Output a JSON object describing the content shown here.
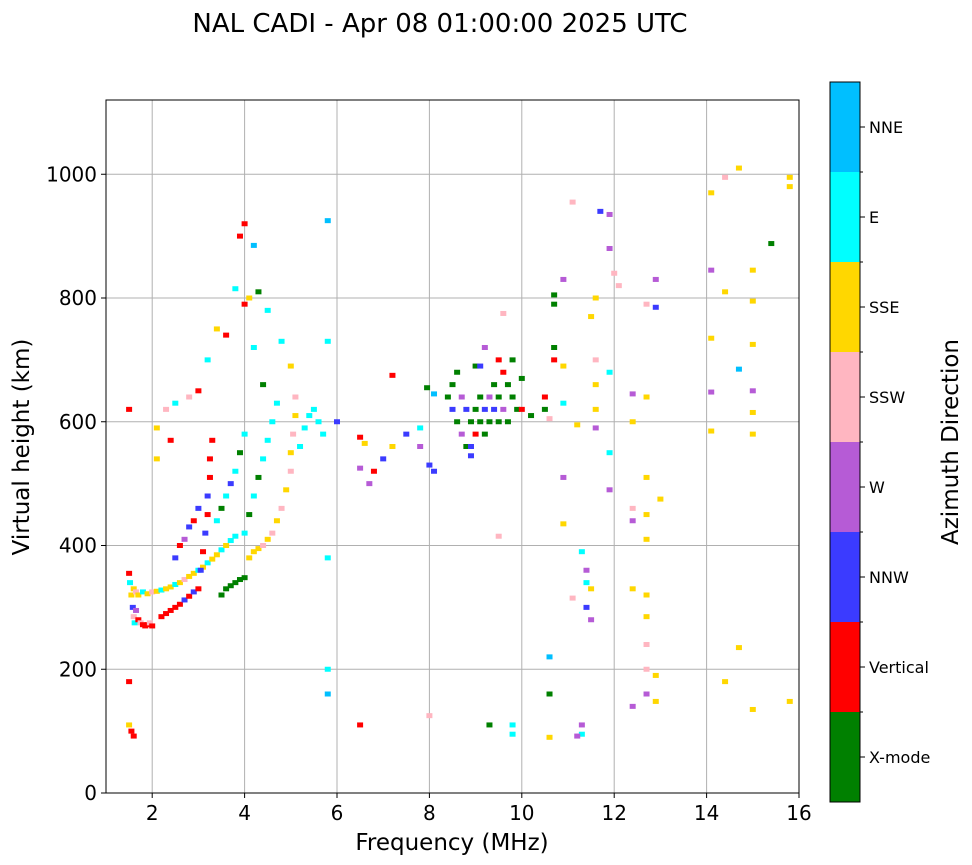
{
  "chart_data": {
    "type": "scatter",
    "title": "NAL CADI - Apr 08 01:00:00 2025 UTC",
    "xlabel": "Frequency (MHz)",
    "ylabel": "Virtual height (km)",
    "xlim": [
      1,
      16
    ],
    "ylim": [
      0,
      1120
    ],
    "xticks": [
      2,
      4,
      6,
      8,
      10,
      12,
      14,
      16
    ],
    "yticks": [
      0,
      200,
      400,
      600,
      800,
      1000
    ],
    "grid": true,
    "colorbar": {
      "label": "Azimuth Direction",
      "categories": [
        {
          "name": "X-mode",
          "color": "#008000"
        },
        {
          "name": "Vertical",
          "color": "#ff0000"
        },
        {
          "name": "NNW",
          "color": "#3b3bff"
        },
        {
          "name": "W",
          "color": "#b65bd6"
        },
        {
          "name": "SSW",
          "color": "#ffb6c1"
        },
        {
          "name": "SSE",
          "color": "#ffd700"
        },
        {
          "name": "E",
          "color": "#00ffff"
        },
        {
          "name": "NNE",
          "color": "#00bfff"
        }
      ]
    },
    "points": [
      [
        1.5,
        355,
        "Vertical"
      ],
      [
        1.52,
        340,
        "E"
      ],
      [
        1.55,
        320,
        "SSE"
      ],
      [
        1.58,
        300,
        "NNW"
      ],
      [
        1.6,
        285,
        "SSW"
      ],
      [
        1.62,
        275,
        "E"
      ],
      [
        1.65,
        295,
        "W"
      ],
      [
        1.7,
        280,
        "Vertical"
      ],
      [
        1.75,
        275,
        "SSW"
      ],
      [
        1.8,
        272,
        "Vertical"
      ],
      [
        1.85,
        270,
        "Vertical"
      ],
      [
        1.9,
        272,
        "Vertical"
      ],
      [
        1.95,
        275,
        "SSW"
      ],
      [
        2.0,
        270,
        "Vertical"
      ],
      [
        1.6,
        330,
        "SSE"
      ],
      [
        1.65,
        325,
        "SSW"
      ],
      [
        1.7,
        320,
        "SSE"
      ],
      [
        1.8,
        325,
        "E"
      ],
      [
        1.9,
        322,
        "SSE"
      ],
      [
        2.0,
        325,
        "SSW"
      ],
      [
        2.1,
        326,
        "SSE"
      ],
      [
        2.2,
        328,
        "E"
      ],
      [
        2.3,
        330,
        "SSE"
      ],
      [
        2.4,
        333,
        "SSE"
      ],
      [
        2.5,
        337,
        "E"
      ],
      [
        2.6,
        340,
        "SSE"
      ],
      [
        2.7,
        345,
        "SSW"
      ],
      [
        2.8,
        350,
        "SSE"
      ],
      [
        2.9,
        355,
        "SSE"
      ],
      [
        3.0,
        360,
        "E"
      ],
      [
        3.1,
        365,
        "SSE"
      ],
      [
        3.2,
        372,
        "E"
      ],
      [
        3.3,
        378,
        "SSE"
      ],
      [
        3.4,
        385,
        "SSE"
      ],
      [
        3.5,
        393,
        "E"
      ],
      [
        3.6,
        400,
        "SSE"
      ],
      [
        3.7,
        408,
        "E"
      ],
      [
        3.8,
        415,
        "E"
      ],
      [
        2.2,
        285,
        "Vertical"
      ],
      [
        2.3,
        290,
        "Vertical"
      ],
      [
        2.4,
        295,
        "Vertical"
      ],
      [
        2.5,
        300,
        "Vertical"
      ],
      [
        2.6,
        305,
        "Vertical"
      ],
      [
        2.7,
        312,
        "NNW"
      ],
      [
        2.8,
        318,
        "Vertical"
      ],
      [
        2.9,
        325,
        "NNW"
      ],
      [
        3.0,
        330,
        "Vertical"
      ],
      [
        3.05,
        360,
        "NNW"
      ],
      [
        3.1,
        390,
        "Vertical"
      ],
      [
        3.15,
        420,
        "NNW"
      ],
      [
        3.2,
        450,
        "Vertical"
      ],
      [
        3.2,
        480,
        "NNW"
      ],
      [
        3.25,
        510,
        "Vertical"
      ],
      [
        3.25,
        540,
        "Vertical"
      ],
      [
        3.3,
        570,
        "Vertical"
      ],
      [
        2.5,
        380,
        "NNW"
      ],
      [
        2.6,
        400,
        "Vertical"
      ],
      [
        2.7,
        410,
        "W"
      ],
      [
        2.8,
        430,
        "NNW"
      ],
      [
        2.9,
        440,
        "Vertical"
      ],
      [
        3.0,
        460,
        "NNW"
      ],
      [
        3.5,
        320,
        "X-mode"
      ],
      [
        3.6,
        330,
        "X-mode"
      ],
      [
        3.7,
        335,
        "X-mode"
      ],
      [
        3.8,
        340,
        "X-mode"
      ],
      [
        3.9,
        345,
        "X-mode"
      ],
      [
        4.0,
        348,
        "X-mode"
      ],
      [
        4.1,
        380,
        "SSE"
      ],
      [
        4.2,
        390,
        "SSE"
      ],
      [
        4.3,
        395,
        "SSE"
      ],
      [
        4.4,
        400,
        "SSW"
      ],
      [
        4.5,
        410,
        "SSE"
      ],
      [
        4.6,
        420,
        "SSW"
      ],
      [
        4.7,
        440,
        "SSE"
      ],
      [
        4.8,
        460,
        "SSW"
      ],
      [
        4.9,
        490,
        "SSE"
      ],
      [
        5.0,
        520,
        "SSW"
      ],
      [
        5.0,
        550,
        "SSE"
      ],
      [
        5.05,
        580,
        "SSW"
      ],
      [
        5.1,
        610,
        "SSE"
      ],
      [
        5.1,
        640,
        "SSW"
      ],
      [
        4.0,
        420,
        "E"
      ],
      [
        4.1,
        450,
        "X-mode"
      ],
      [
        4.2,
        480,
        "E"
      ],
      [
        4.3,
        510,
        "X-mode"
      ],
      [
        4.4,
        540,
        "E"
      ],
      [
        4.5,
        570,
        "E"
      ],
      [
        4.6,
        600,
        "E"
      ],
      [
        4.7,
        630,
        "E"
      ],
      [
        3.4,
        440,
        "E"
      ],
      [
        3.5,
        460,
        "X-mode"
      ],
      [
        3.6,
        480,
        "E"
      ],
      [
        3.7,
        500,
        "NNW"
      ],
      [
        3.8,
        520,
        "E"
      ],
      [
        3.9,
        550,
        "X-mode"
      ],
      [
        4.0,
        580,
        "E"
      ],
      [
        5.2,
        560,
        "E"
      ],
      [
        5.3,
        590,
        "E"
      ],
      [
        5.4,
        610,
        "E"
      ],
      [
        5.5,
        620,
        "E"
      ],
      [
        5.6,
        600,
        "E"
      ],
      [
        5.7,
        580,
        "E"
      ],
      [
        1.5,
        180,
        "Vertical"
      ],
      [
        1.5,
        110,
        "SSE"
      ],
      [
        1.55,
        100,
        "Vertical"
      ],
      [
        1.6,
        92,
        "Vertical"
      ],
      [
        1.5,
        620,
        "Vertical"
      ],
      [
        2.3,
        620,
        "SSW"
      ],
      [
        2.5,
        630,
        "E"
      ],
      [
        2.8,
        640,
        "SSW"
      ],
      [
        2.1,
        590,
        "SSE"
      ],
      [
        2.1,
        540,
        "SSE"
      ],
      [
        2.4,
        570,
        "Vertical"
      ],
      [
        3.0,
        650,
        "Vertical"
      ],
      [
        3.2,
        700,
        "E"
      ],
      [
        3.4,
        750,
        "SSE"
      ],
      [
        3.6,
        740,
        "Vertical"
      ],
      [
        3.8,
        815,
        "E"
      ],
      [
        4.0,
        790,
        "Vertical"
      ],
      [
        4.0,
        920,
        "Vertical"
      ],
      [
        4.2,
        885,
        "NNE"
      ],
      [
        4.1,
        800,
        "SSE"
      ],
      [
        4.3,
        810,
        "X-mode"
      ],
      [
        4.5,
        780,
        "E"
      ],
      [
        4.8,
        730,
        "E"
      ],
      [
        5.0,
        690,
        "SSE"
      ],
      [
        4.4,
        660,
        "X-mode"
      ],
      [
        4.2,
        720,
        "E"
      ],
      [
        3.9,
        900,
        "Vertical"
      ],
      [
        5.8,
        925,
        "NNE"
      ],
      [
        5.8,
        730,
        "E"
      ],
      [
        5.8,
        380,
        "E"
      ],
      [
        5.8,
        200,
        "E"
      ],
      [
        5.8,
        160,
        "NNE"
      ],
      [
        6.0,
        600,
        "NNW"
      ],
      [
        6.5,
        575,
        "Vertical"
      ],
      [
        6.6,
        565,
        "SSE"
      ],
      [
        6.5,
        525,
        "W"
      ],
      [
        6.7,
        500,
        "W"
      ],
      [
        6.8,
        520,
        "Vertical"
      ],
      [
        7.0,
        540,
        "NNW"
      ],
      [
        7.2,
        560,
        "SSE"
      ],
      [
        6.5,
        110,
        "Vertical"
      ],
      [
        7.2,
        675,
        "Vertical"
      ],
      [
        7.5,
        580,
        "NNW"
      ],
      [
        7.8,
        590,
        "E"
      ],
      [
        7.8,
        560,
        "W"
      ],
      [
        8.0,
        530,
        "NNW"
      ],
      [
        8.1,
        520,
        "NNW"
      ],
      [
        7.95,
        655,
        "X-mode"
      ],
      [
        8.1,
        645,
        "NNE"
      ],
      [
        8.0,
        125,
        "SSW"
      ],
      [
        8.4,
        640,
        "X-mode"
      ],
      [
        8.5,
        620,
        "NNW"
      ],
      [
        8.6,
        600,
        "X-mode"
      ],
      [
        8.7,
        580,
        "W"
      ],
      [
        8.8,
        560,
        "X-mode"
      ],
      [
        8.9,
        545,
        "NNW"
      ],
      [
        8.5,
        660,
        "X-mode"
      ],
      [
        8.6,
        680,
        "X-mode"
      ],
      [
        8.7,
        640,
        "W"
      ],
      [
        8.8,
        620,
        "NNW"
      ],
      [
        8.9,
        600,
        "X-mode"
      ],
      [
        9.0,
        580,
        "Vertical"
      ],
      [
        9.0,
        620,
        "X-mode"
      ],
      [
        9.1,
        640,
        "X-mode"
      ],
      [
        9.1,
        600,
        "X-mode"
      ],
      [
        9.2,
        620,
        "NNW"
      ],
      [
        9.2,
        580,
        "X-mode"
      ],
      [
        9.3,
        640,
        "W"
      ],
      [
        9.3,
        600,
        "X-mode"
      ],
      [
        9.4,
        660,
        "X-mode"
      ],
      [
        9.4,
        620,
        "NNW"
      ],
      [
        9.5,
        600,
        "X-mode"
      ],
      [
        9.5,
        640,
        "X-mode"
      ],
      [
        9.6,
        620,
        "W"
      ],
      [
        9.6,
        680,
        "Vertical"
      ],
      [
        9.7,
        660,
        "X-mode"
      ],
      [
        9.7,
        600,
        "X-mode"
      ],
      [
        9.8,
        640,
        "X-mode"
      ],
      [
        9.8,
        700,
        "X-mode"
      ],
      [
        9.9,
        620,
        "X-mode"
      ],
      [
        10.0,
        670,
        "X-mode"
      ],
      [
        9.2,
        720,
        "W"
      ],
      [
        9.0,
        690,
        "X-mode"
      ],
      [
        8.9,
        560,
        "NNW"
      ],
      [
        9.1,
        690,
        "NNW"
      ],
      [
        9.5,
        700,
        "Vertical"
      ],
      [
        9.3,
        110,
        "X-mode"
      ],
      [
        9.8,
        110,
        "E"
      ],
      [
        9.8,
        95,
        "E"
      ],
      [
        9.5,
        415,
        "SSW"
      ],
      [
        9.6,
        775,
        "SSW"
      ],
      [
        10.0,
        620,
        "Vertical"
      ],
      [
        10.2,
        610,
        "X-mode"
      ],
      [
        10.5,
        640,
        "Vertical"
      ],
      [
        10.5,
        620,
        "X-mode"
      ],
      [
        10.7,
        700,
        "Vertical"
      ],
      [
        10.7,
        720,
        "X-mode"
      ],
      [
        10.7,
        790,
        "X-mode"
      ],
      [
        10.7,
        805,
        "X-mode"
      ],
      [
        10.6,
        605,
        "SSW"
      ],
      [
        10.9,
        690,
        "SSE"
      ],
      [
        10.9,
        630,
        "E"
      ],
      [
        10.9,
        510,
        "W"
      ],
      [
        10.9,
        435,
        "SSE"
      ],
      [
        10.6,
        160,
        "X-mode"
      ],
      [
        10.6,
        220,
        "NNE"
      ],
      [
        10.6,
        90,
        "SSE"
      ],
      [
        10.9,
        830,
        "W"
      ],
      [
        11.1,
        955,
        "SSW"
      ],
      [
        11.2,
        595,
        "SSE"
      ],
      [
        11.3,
        390,
        "E"
      ],
      [
        11.4,
        360,
        "W"
      ],
      [
        11.4,
        340,
        "E"
      ],
      [
        11.4,
        300,
        "NNW"
      ],
      [
        11.5,
        330,
        "SSE"
      ],
      [
        11.5,
        280,
        "W"
      ],
      [
        11.1,
        315,
        "SSW"
      ],
      [
        11.3,
        110,
        "W"
      ],
      [
        11.3,
        95,
        "E"
      ],
      [
        11.2,
        92,
        "W"
      ],
      [
        11.6,
        700,
        "SSW"
      ],
      [
        11.6,
        620,
        "SSE"
      ],
      [
        11.6,
        660,
        "SSE"
      ],
      [
        11.6,
        800,
        "SSE"
      ],
      [
        11.5,
        770,
        "SSE"
      ],
      [
        11.7,
        940,
        "NNW"
      ],
      [
        11.9,
        935,
        "W"
      ],
      [
        11.9,
        880,
        "W"
      ],
      [
        11.9,
        680,
        "E"
      ],
      [
        11.9,
        550,
        "E"
      ],
      [
        11.9,
        490,
        "W"
      ],
      [
        11.6,
        590,
        "W"
      ],
      [
        12.0,
        840,
        "SSW"
      ],
      [
        12.1,
        820,
        "SSW"
      ],
      [
        12.4,
        645,
        "W"
      ],
      [
        12.4,
        600,
        "SSE"
      ],
      [
        12.4,
        460,
        "SSW"
      ],
      [
        12.4,
        440,
        "W"
      ],
      [
        12.4,
        330,
        "SSE"
      ],
      [
        12.7,
        790,
        "SSW"
      ],
      [
        12.7,
        640,
        "SSE"
      ],
      [
        12.7,
        510,
        "SSE"
      ],
      [
        12.7,
        450,
        "SSE"
      ],
      [
        12.7,
        410,
        "SSE"
      ],
      [
        12.7,
        320,
        "SSE"
      ],
      [
        12.7,
        285,
        "SSE"
      ],
      [
        12.7,
        240,
        "SSW"
      ],
      [
        12.7,
        200,
        "SSW"
      ],
      [
        12.7,
        160,
        "W"
      ],
      [
        12.4,
        140,
        "W"
      ],
      [
        12.9,
        830,
        "W"
      ],
      [
        12.9,
        785,
        "NNW"
      ],
      [
        13.0,
        475,
        "SSE"
      ],
      [
        12.9,
        190,
        "SSE"
      ],
      [
        12.9,
        148,
        "SSE"
      ],
      [
        14.1,
        970,
        "SSE"
      ],
      [
        14.1,
        845,
        "W"
      ],
      [
        14.1,
        735,
        "SSE"
      ],
      [
        14.1,
        648,
        "W"
      ],
      [
        14.1,
        585,
        "SSE"
      ],
      [
        14.4,
        995,
        "SSW"
      ],
      [
        14.4,
        810,
        "SSE"
      ],
      [
        14.4,
        180,
        "SSE"
      ],
      [
        14.7,
        1010,
        "SSE"
      ],
      [
        14.7,
        685,
        "NNE"
      ],
      [
        14.7,
        235,
        "SSE"
      ],
      [
        15.0,
        845,
        "SSE"
      ],
      [
        15.0,
        795,
        "SSE"
      ],
      [
        15.0,
        725,
        "SSE"
      ],
      [
        15.0,
        650,
        "W"
      ],
      [
        15.0,
        615,
        "SSE"
      ],
      [
        15.0,
        580,
        "SSE"
      ],
      [
        15.0,
        135,
        "SSE"
      ],
      [
        15.4,
        888,
        "X-mode"
      ],
      [
        15.8,
        995,
        "SSE"
      ],
      [
        15.8,
        980,
        "SSE"
      ],
      [
        15.8,
        148,
        "SSE"
      ]
    ]
  }
}
